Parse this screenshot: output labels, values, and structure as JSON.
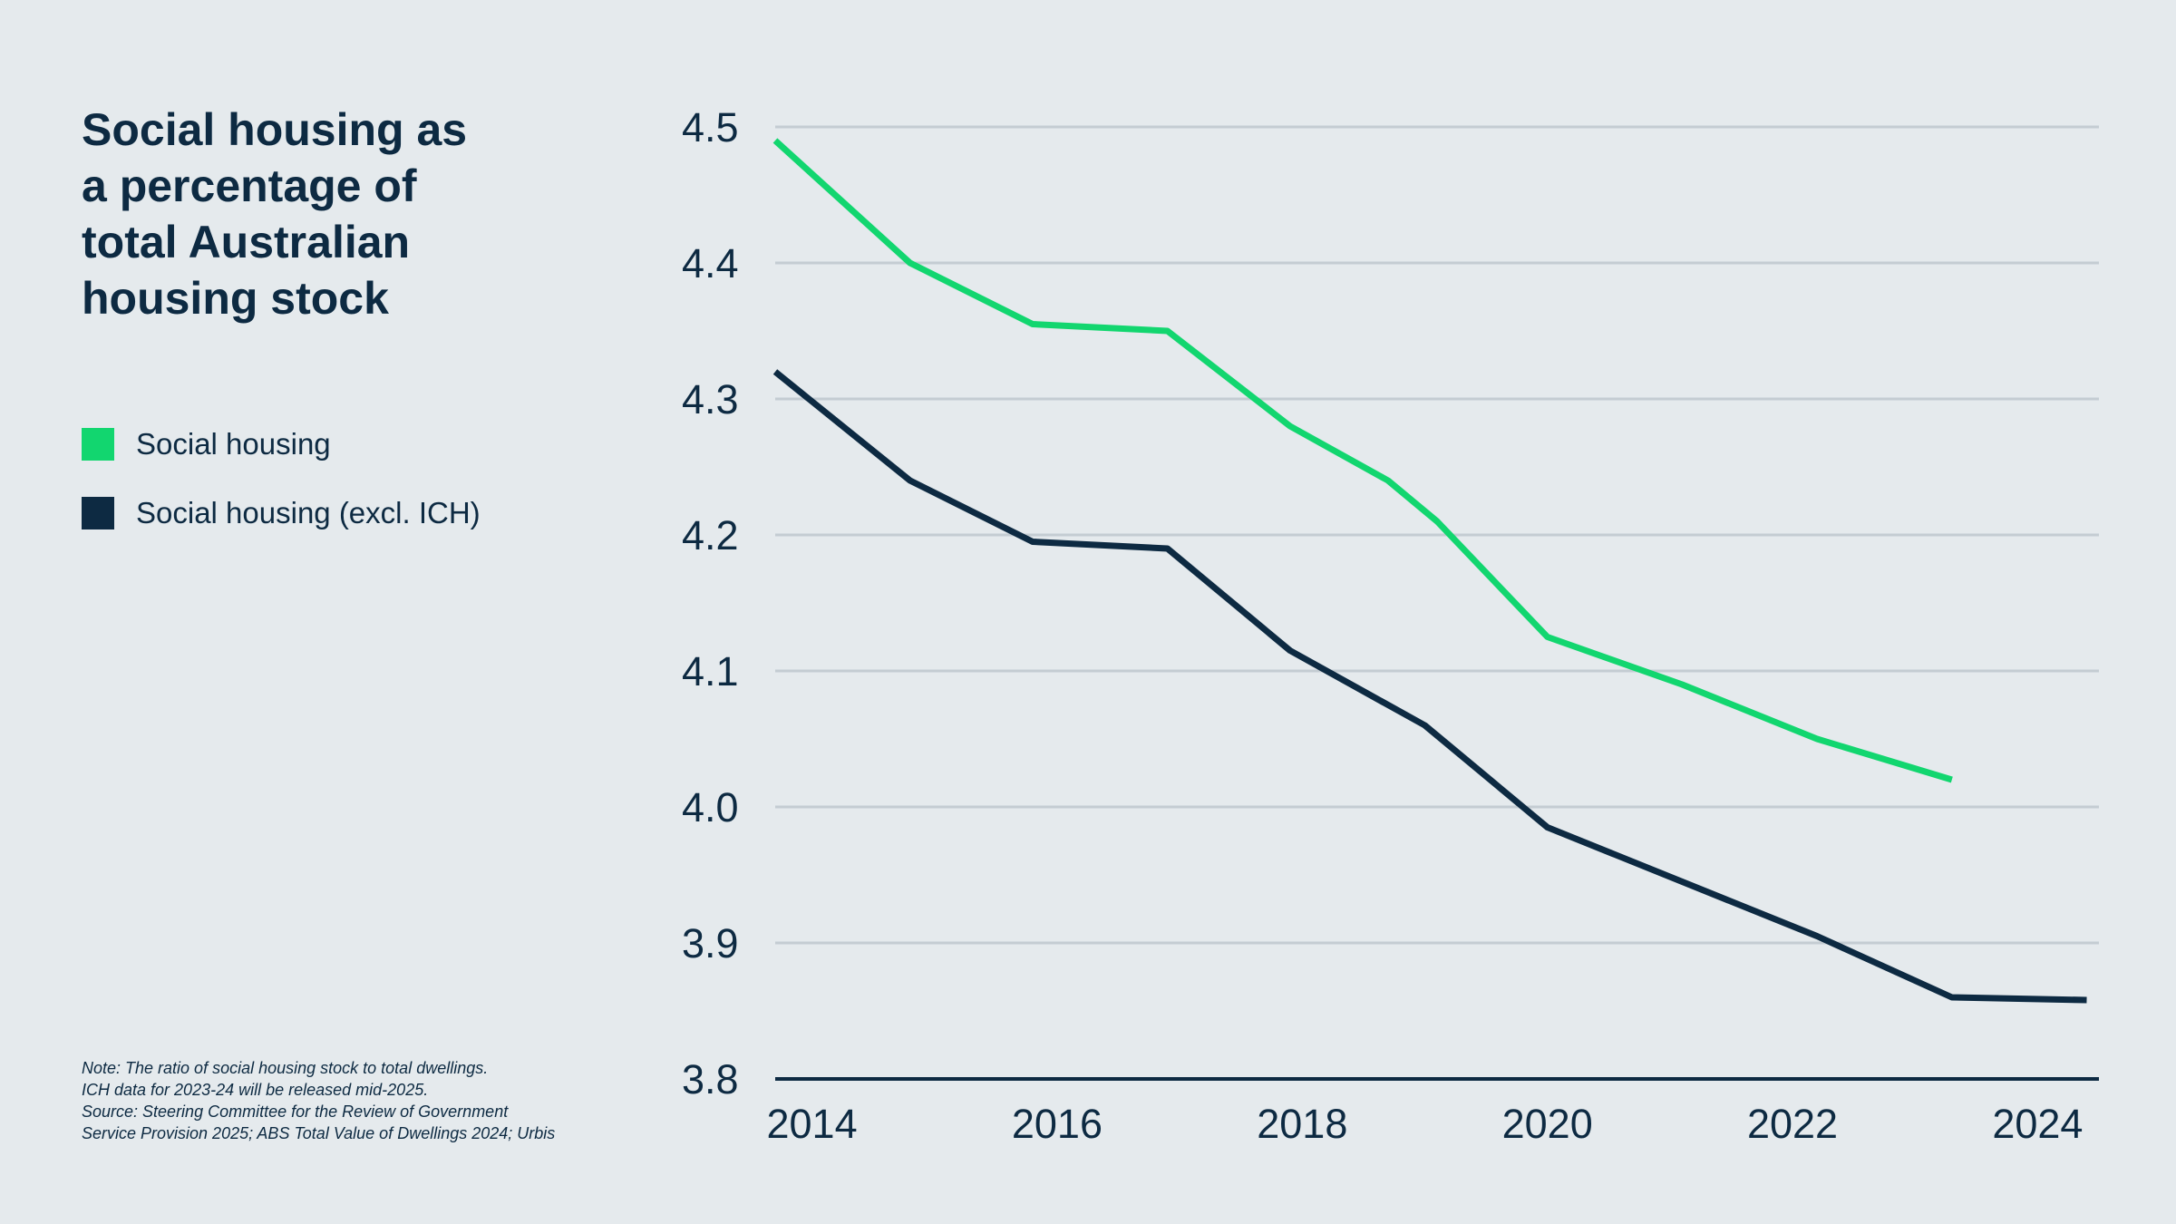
{
  "chart_data": {
    "type": "line",
    "title": "Social housing as\na percentage of\ntotal Australian\nhousing stock",
    "xlabel": "",
    "ylabel": "",
    "x": [
      2013.7,
      2014.8,
      2015.8,
      2016.9,
      2017.9,
      2018.7,
      2019.1,
      2020.0,
      2021.1,
      2022.2,
      2023.3,
      2024.4
    ],
    "xlim": [
      2013.7,
      2024.5
    ],
    "ylim": [
      3.8,
      4.5
    ],
    "xticks": [
      2014,
      2016,
      2018,
      2020,
      2022,
      2024
    ],
    "yticks": [
      3.8,
      3.9,
      4.0,
      4.1,
      4.2,
      4.3,
      4.4,
      4.5
    ],
    "xtick_labels": [
      "2014",
      "2016",
      "2018",
      "2020",
      "2022",
      "2024"
    ],
    "ytick_labels": [
      "3.8",
      "3.9",
      "4.0",
      "4.1",
      "4.2",
      "4.3",
      "4.4",
      "4.5"
    ],
    "grid": true,
    "legend_position": "left",
    "series": [
      {
        "name": "Social housing",
        "color": "#12d66f",
        "x": [
          2013.7,
          2014.8,
          2015.8,
          2016.9,
          2017.9,
          2018.7,
          2019.1,
          2020.0,
          2021.1,
          2022.2,
          2023.3
        ],
        "values": [
          4.49,
          4.4,
          4.355,
          4.35,
          4.28,
          4.24,
          4.21,
          4.125,
          4.09,
          4.05,
          4.02
        ]
      },
      {
        "name": "Social housing (excl. ICH)",
        "color": "#0d2a42",
        "x": [
          2013.7,
          2014.8,
          2015.8,
          2016.9,
          2017.9,
          2019.0,
          2020.0,
          2021.1,
          2022.2,
          2023.3,
          2024.4
        ],
        "values": [
          4.32,
          4.24,
          4.195,
          4.19,
          4.115,
          4.06,
          3.985,
          3.945,
          3.905,
          3.86,
          3.858
        ]
      }
    ]
  },
  "legend": {
    "items": [
      {
        "label": "Social housing",
        "color": "#12d66f"
      },
      {
        "label": "Social housing (excl. ICH)",
        "color": "#0d2a42"
      }
    ]
  },
  "note": {
    "lines": [
      "Note: The ratio of social housing stock to total dwellings.",
      "ICH data for 2023-24 will be released mid-2025.",
      "Source: Steering Committee for the Review of Government",
      "Service Provision 2025; ABS Total Value of Dwellings 2024; Urbis"
    ]
  },
  "colors": {
    "background": "#e5eaed",
    "grid": "#c4ccd2",
    "text": "#0d2a42",
    "axis": "#0d2a42"
  }
}
